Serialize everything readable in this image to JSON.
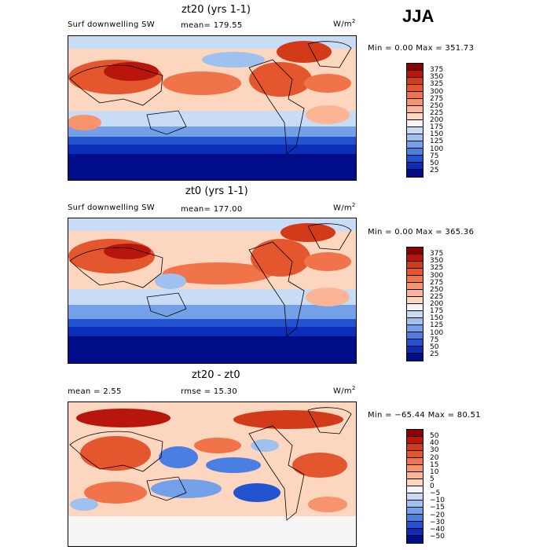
{
  "season": "JJA",
  "panels": [
    {
      "title": "zt20 (yrs 1-1)",
      "left_label": "Surf downwelling SW",
      "mid_label": "mean=  179.55",
      "units": "W/m",
      "units_sup": "2",
      "stats": "Min =    0.00 Max = 351.73",
      "colorbar": {
        "labels": [
          "375",
          "350",
          "325",
          "300",
          "275",
          "250",
          "225",
          "200",
          "175",
          "150",
          "125",
          "100",
          "75",
          "50",
          "25"
        ],
        "colors": [
          "#8b0000",
          "#b8160c",
          "#d33a1a",
          "#e4562d",
          "#f0734a",
          "#f7946d",
          "#fbb594",
          "#fdd6bf",
          "#f5f5f5",
          "#c9dcf5",
          "#9fc1ef",
          "#74a0e8",
          "#4a7ee0",
          "#2453d0",
          "#0b2db8",
          "#000d88"
        ]
      },
      "chart_data": {
        "type": "heatmap",
        "field": "Surf downwelling SW",
        "units": "W/m2",
        "mean": 179.55,
        "min": 0.0,
        "max": 351.73,
        "levels": [
          25,
          50,
          75,
          100,
          125,
          150,
          175,
          200,
          225,
          250,
          275,
          300,
          325,
          350,
          375
        ]
      }
    },
    {
      "title": "zt0 (yrs 1-1)",
      "left_label": "Surf downwelling SW",
      "mid_label": "mean=  177.00",
      "units": "W/m",
      "units_sup": "2",
      "stats": "Min =    0.00 Max = 365.36",
      "colorbar": {
        "labels": [
          "375",
          "350",
          "325",
          "300",
          "275",
          "250",
          "225",
          "200",
          "175",
          "150",
          "125",
          "100",
          "75",
          "50",
          "25"
        ],
        "colors": [
          "#8b0000",
          "#b8160c",
          "#d33a1a",
          "#e4562d",
          "#f0734a",
          "#f7946d",
          "#fbb594",
          "#fdd6bf",
          "#f5f5f5",
          "#c9dcf5",
          "#9fc1ef",
          "#74a0e8",
          "#4a7ee0",
          "#2453d0",
          "#0b2db8",
          "#000d88"
        ]
      },
      "chart_data": {
        "type": "heatmap",
        "field": "Surf downwelling SW",
        "units": "W/m2",
        "mean": 177.0,
        "min": 0.0,
        "max": 365.36,
        "levels": [
          25,
          50,
          75,
          100,
          125,
          150,
          175,
          200,
          225,
          250,
          275,
          300,
          325,
          350,
          375
        ]
      }
    },
    {
      "title": "zt20 - zt0",
      "left_label": "mean =    2.55",
      "mid_label": "rmse =   15.30",
      "units": "W/m",
      "units_sup": "2",
      "stats": "Min = −65.44 Max =   80.51",
      "colorbar": {
        "labels": [
          "50",
          "40",
          "30",
          "20",
          "15",
          "10",
          "5",
          "0",
          "−5",
          "−10",
          "−15",
          "−20",
          "−30",
          "−40",
          "−50"
        ],
        "colors": [
          "#8b0000",
          "#b8160c",
          "#d33a1a",
          "#e4562d",
          "#f0734a",
          "#f7946d",
          "#fbb594",
          "#fdd6bf",
          "#f5f5f5",
          "#c9dcf5",
          "#9fc1ef",
          "#74a0e8",
          "#4a7ee0",
          "#2453d0",
          "#0b2db8",
          "#000d88"
        ]
      },
      "chart_data": {
        "type": "heatmap",
        "field": "zt20 - zt0",
        "units": "W/m2",
        "mean": 2.55,
        "rmse": 15.3,
        "min": -65.44,
        "max": 80.51,
        "levels": [
          -50,
          -40,
          -30,
          -20,
          -15,
          -10,
          -5,
          0,
          5,
          10,
          15,
          20,
          30,
          40,
          50
        ]
      }
    }
  ]
}
